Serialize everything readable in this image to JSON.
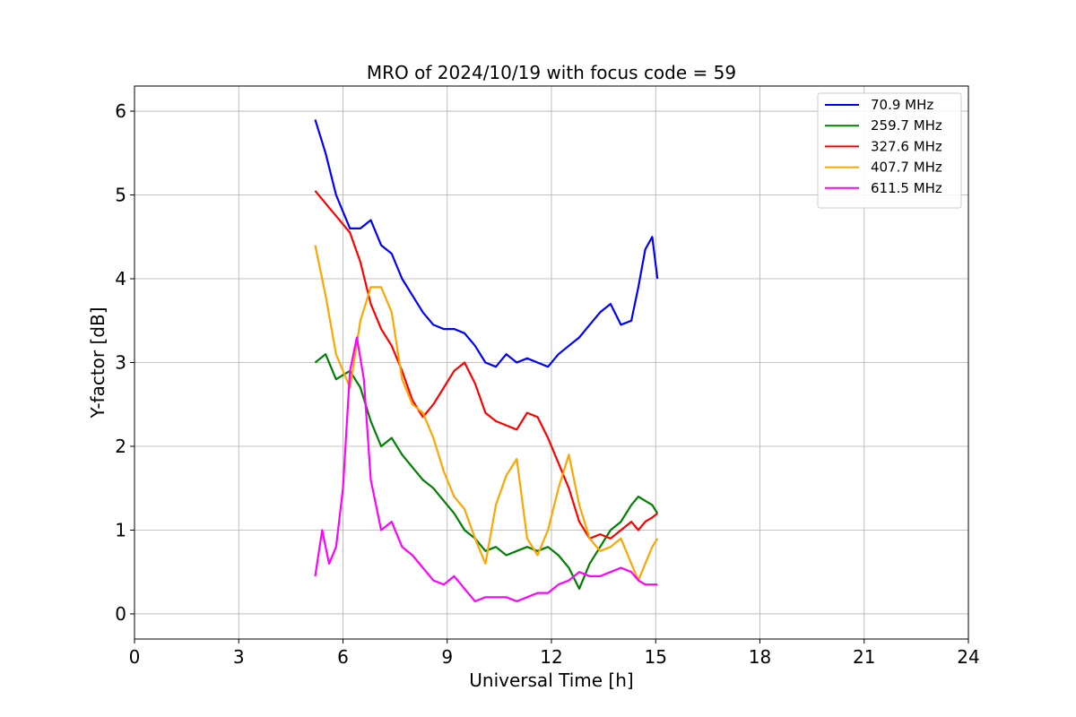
{
  "chart_data": {
    "type": "line",
    "title": "MRO of 2024/10/19 with focus code = 59",
    "xlabel": "Universal Time [h]",
    "ylabel": "Y-factor [dB]",
    "xlim": [
      0,
      24
    ],
    "ylim": [
      -0.3,
      6.3
    ],
    "xticks": [
      0,
      3,
      6,
      9,
      12,
      15,
      18,
      21,
      24
    ],
    "yticks": [
      0,
      1,
      2,
      3,
      4,
      5,
      6
    ],
    "grid": true,
    "legend_position": "top-right",
    "series": [
      {
        "name": " 70.9 MHz",
        "color": "#0000ff",
        "x": [
          5.2,
          5.5,
          5.8,
          6.2,
          6.5,
          6.8,
          7.1,
          7.4,
          7.7,
          8.0,
          8.3,
          8.6,
          8.9,
          9.2,
          9.5,
          9.8,
          10.1,
          10.4,
          10.7,
          11.0,
          11.3,
          11.6,
          11.9,
          12.2,
          12.5,
          12.8,
          13.1,
          13.4,
          13.7,
          14.0,
          14.3,
          14.5,
          14.7,
          14.9,
          15.05
        ],
        "y": [
          5.9,
          5.5,
          5.0,
          4.6,
          4.6,
          4.7,
          4.4,
          4.3,
          4.0,
          3.8,
          3.6,
          3.45,
          3.4,
          3.4,
          3.35,
          3.2,
          3.0,
          2.95,
          3.1,
          3.0,
          3.05,
          3.0,
          2.95,
          3.1,
          3.2,
          3.3,
          3.45,
          3.6,
          3.7,
          3.45,
          3.5,
          3.9,
          4.35,
          4.5,
          4.0
        ]
      },
      {
        "name": "259.7 MHz",
        "color": "#008000",
        "x": [
          5.2,
          5.5,
          5.8,
          6.2,
          6.5,
          6.8,
          7.1,
          7.4,
          7.7,
          8.0,
          8.3,
          8.6,
          8.9,
          9.2,
          9.5,
          9.8,
          10.1,
          10.4,
          10.7,
          11.0,
          11.3,
          11.6,
          11.9,
          12.2,
          12.5,
          12.8,
          13.1,
          13.4,
          13.7,
          14.0,
          14.3,
          14.5,
          14.7,
          14.9,
          15.05
        ],
        "y": [
          3.0,
          3.1,
          2.8,
          2.9,
          2.7,
          2.3,
          2.0,
          2.1,
          1.9,
          1.75,
          1.6,
          1.5,
          1.35,
          1.2,
          1.0,
          0.9,
          0.75,
          0.8,
          0.7,
          0.75,
          0.8,
          0.75,
          0.8,
          0.7,
          0.55,
          0.3,
          0.6,
          0.8,
          1.0,
          1.1,
          1.3,
          1.4,
          1.35,
          1.3,
          1.2
        ]
      },
      {
        "name": "327.6 MHz",
        "color": "#ff0000",
        "x": [
          5.2,
          5.5,
          5.8,
          6.2,
          6.5,
          6.8,
          7.1,
          7.4,
          7.7,
          8.0,
          8.3,
          8.6,
          8.9,
          9.2,
          9.5,
          9.8,
          10.1,
          10.4,
          10.7,
          11.0,
          11.3,
          11.6,
          11.9,
          12.2,
          12.5,
          12.8,
          13.1,
          13.4,
          13.7,
          14.0,
          14.3,
          14.5,
          14.7,
          14.9,
          15.05
        ],
        "y": [
          5.05,
          4.9,
          4.75,
          4.55,
          4.2,
          3.7,
          3.4,
          3.2,
          2.9,
          2.55,
          2.35,
          2.5,
          2.7,
          2.9,
          3.0,
          2.75,
          2.4,
          2.3,
          2.25,
          2.2,
          2.4,
          2.35,
          2.1,
          1.8,
          1.5,
          1.1,
          0.9,
          0.95,
          0.9,
          1.0,
          1.1,
          1.0,
          1.1,
          1.15,
          1.2
        ]
      },
      {
        "name": "407.7 MHz",
        "color": "#ffa500",
        "x": [
          5.2,
          5.5,
          5.8,
          6.2,
          6.5,
          6.8,
          7.1,
          7.4,
          7.7,
          8.0,
          8.3,
          8.6,
          8.9,
          9.2,
          9.5,
          9.8,
          10.1,
          10.4,
          10.7,
          11.0,
          11.3,
          11.6,
          11.9,
          12.2,
          12.5,
          12.8,
          13.1,
          13.4,
          13.7,
          14.0,
          14.3,
          14.5,
          14.7,
          14.9,
          15.05
        ],
        "y": [
          4.4,
          3.8,
          3.1,
          2.7,
          3.5,
          3.9,
          3.9,
          3.6,
          2.8,
          2.5,
          2.4,
          2.1,
          1.7,
          1.4,
          1.25,
          0.9,
          0.6,
          1.3,
          1.65,
          1.85,
          0.9,
          0.7,
          1.0,
          1.5,
          1.9,
          1.3,
          0.9,
          0.75,
          0.8,
          0.9,
          0.6,
          0.4,
          0.6,
          0.8,
          0.9
        ]
      },
      {
        "name": "611.5 MHz",
        "color": "#ff00ff",
        "x": [
          5.2,
          5.4,
          5.6,
          5.8,
          6.0,
          6.2,
          6.4,
          6.6,
          6.8,
          7.1,
          7.4,
          7.7,
          8.0,
          8.3,
          8.6,
          8.9,
          9.2,
          9.5,
          9.8,
          10.1,
          10.4,
          10.7,
          11.0,
          11.3,
          11.6,
          11.9,
          12.2,
          12.5,
          12.8,
          13.1,
          13.4,
          13.7,
          14.0,
          14.3,
          14.5,
          14.7,
          14.9,
          15.05
        ],
        "y": [
          0.45,
          1.0,
          0.6,
          0.8,
          1.5,
          2.9,
          3.3,
          2.8,
          1.6,
          1.0,
          1.1,
          0.8,
          0.7,
          0.55,
          0.4,
          0.35,
          0.45,
          0.3,
          0.15,
          0.2,
          0.2,
          0.2,
          0.15,
          0.2,
          0.25,
          0.25,
          0.35,
          0.4,
          0.5,
          0.45,
          0.45,
          0.5,
          0.55,
          0.5,
          0.4,
          0.35,
          0.35,
          0.35
        ]
      }
    ]
  }
}
